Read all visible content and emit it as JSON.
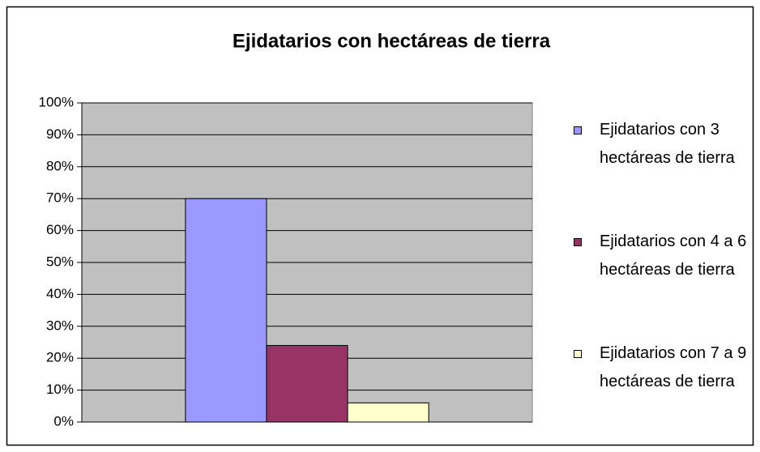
{
  "chart_data": {
    "type": "bar",
    "title": "Ejidatarios con hectáreas de tierra",
    "categories": [
      null
    ],
    "series": [
      {
        "name": "Ejidatarios con 3 hectáreas de tierra",
        "color": "#9999ff",
        "values": [
          70
        ]
      },
      {
        "name": "Ejidatarios con 4 a 6 hectáreas de tierra",
        "color": "#993366",
        "values": [
          24
        ]
      },
      {
        "name": "Ejidatarios con 7 a 9 hectáreas de tierra",
        "color": "#ffffcc",
        "values": [
          6
        ]
      }
    ],
    "ylim": [
      0,
      100
    ],
    "yticks": [
      {
        "value": 0,
        "label": "0%"
      },
      {
        "value": 10,
        "label": "10%"
      },
      {
        "value": 20,
        "label": "20%"
      },
      {
        "value": 30,
        "label": "30%"
      },
      {
        "value": 40,
        "label": "40%"
      },
      {
        "value": 50,
        "label": "50%"
      },
      {
        "value": 60,
        "label": "60%"
      },
      {
        "value": 70,
        "label": "70%"
      },
      {
        "value": 80,
        "label": "80%"
      },
      {
        "value": 90,
        "label": "90%"
      },
      {
        "value": 100,
        "label": "100%"
      }
    ],
    "grid": true,
    "legend": "right"
  }
}
